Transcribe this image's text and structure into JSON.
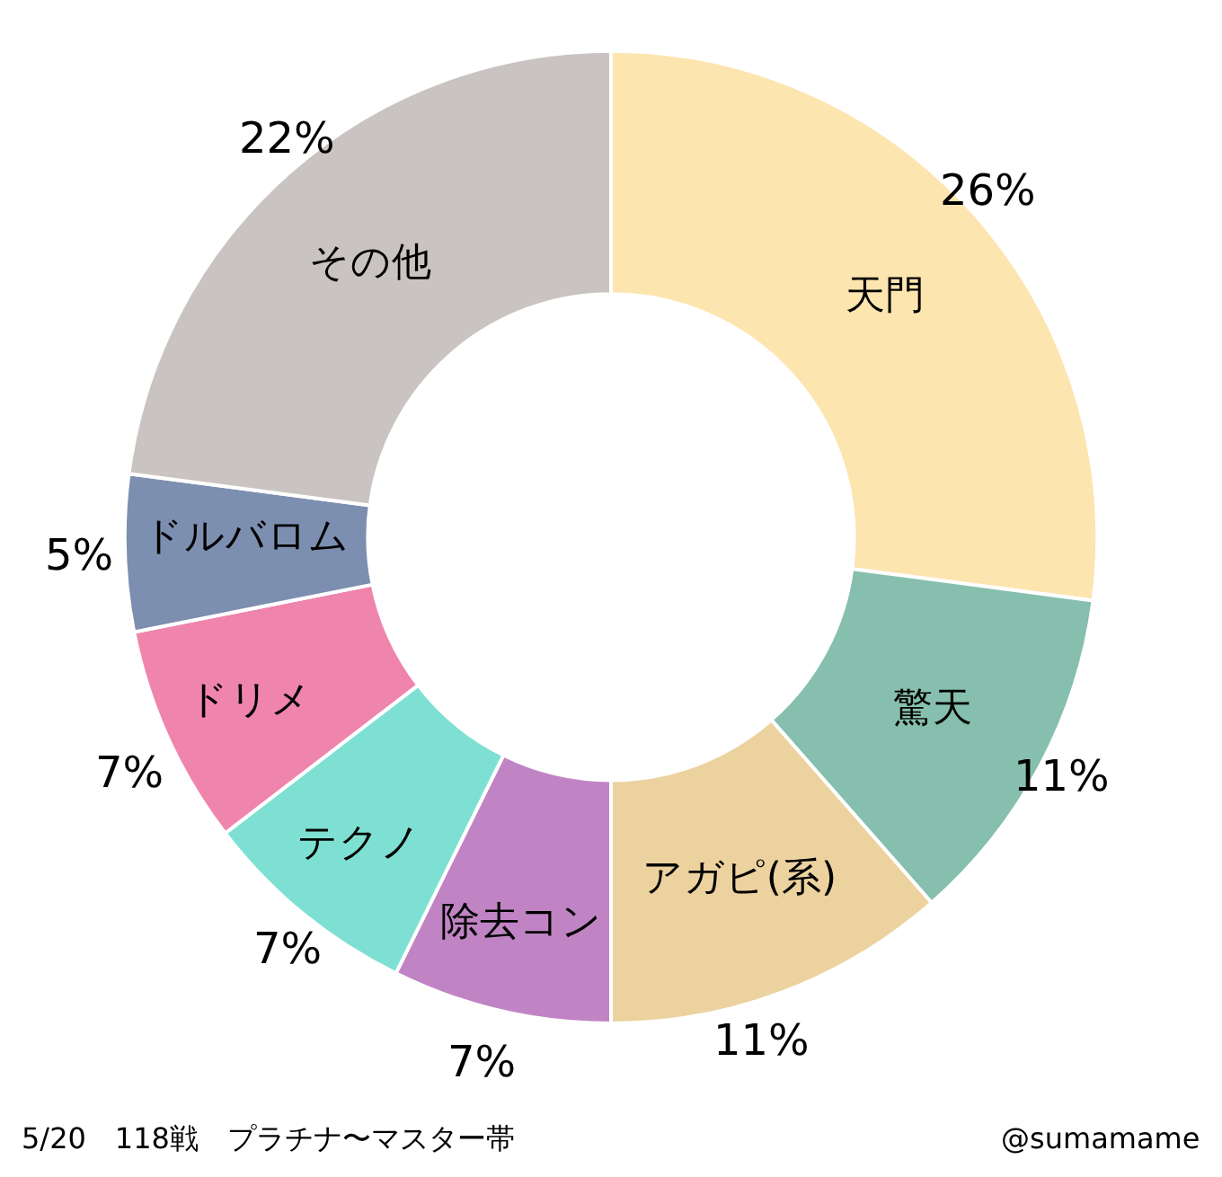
{
  "chart_data": {
    "type": "donut",
    "categories": [
      "天門",
      "驚天",
      "アガピ(系)",
      "除去コン",
      "テクノ",
      "ドリメ",
      "ドルバロム",
      "その他"
    ],
    "values": [
      26,
      11,
      11,
      7,
      7,
      7,
      5,
      22
    ],
    "value_labels": [
      "26%",
      "11%",
      "11%",
      "7%",
      "7%",
      "7%",
      "5%",
      "22%"
    ],
    "colors": [
      "#fde5b0",
      "#86bfae",
      "#ecd29f",
      "#c084c4",
      "#7ee0d2",
      "#ef84ac",
      "#7d8fb0",
      "#c9c4c2"
    ],
    "annotations": [
      "5/20　118戦　プラチナ〜マスター帯",
      "@sumamame"
    ],
    "legend": false
  }
}
